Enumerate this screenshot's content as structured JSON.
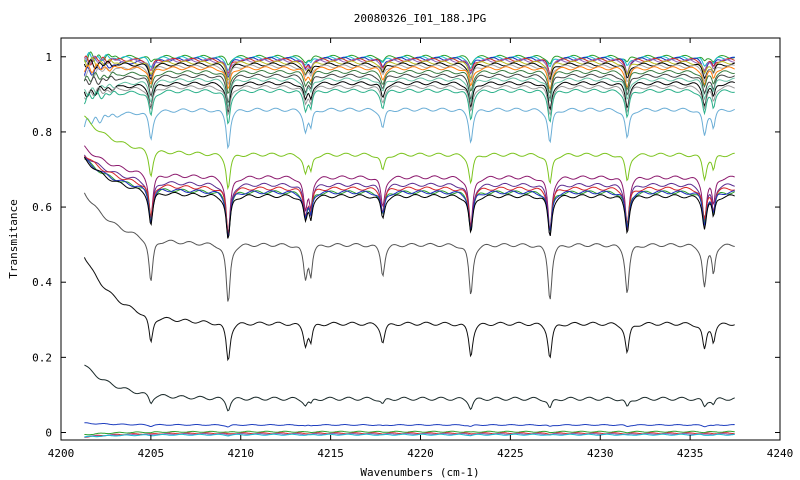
{
  "chart_data": {
    "type": "line",
    "title": "20080326_I01_188.JPG",
    "xlabel": "Wavenumbers (cm-1)",
    "ylabel": "Transmitance",
    "xlim": [
      4200,
      4240
    ],
    "ylim": [
      -0.02,
      1.05
    ],
    "x_ticks": [
      4200,
      4205,
      4210,
      4215,
      4220,
      4225,
      4230,
      4235,
      4240
    ],
    "x_tick_labels": [
      "4200",
      "4205",
      "4210",
      "4215",
      "4220",
      "4225",
      "4230",
      "4235",
      "4240"
    ],
    "y_ticks": [
      0,
      0.2,
      0.4,
      0.6,
      0.8,
      1
    ],
    "y_tick_labels": [
      "0",
      "0.2",
      "0.4",
      "0.6",
      "0.8",
      "1"
    ],
    "x_range_data": [
      4201.3,
      4237.5
    ],
    "absorption_lines_cm1": [
      4205.0,
      4209.3,
      4213.6,
      4217.9,
      4222.8,
      4227.2,
      4231.5,
      4235.8
    ],
    "grid": false,
    "legend": "none",
    "series": [
      {
        "color": "#2ca02c",
        "baseline": 1.0,
        "depth": 0.02,
        "start_rise": 0.0
      },
      {
        "color": "#17becf",
        "baseline": 0.997,
        "depth": 0.03,
        "start_rise": 0.0
      },
      {
        "color": "#1f2fbf",
        "baseline": 0.995,
        "depth": 0.05,
        "start_rise": -0.04
      },
      {
        "color": "#d62728",
        "baseline": 0.992,
        "depth": 0.04,
        "start_rise": 0.0
      },
      {
        "color": "#9467bd",
        "baseline": 0.99,
        "depth": 0.04,
        "start_rise": 0.0
      },
      {
        "color": "#bcbd22",
        "baseline": 0.985,
        "depth": 0.045,
        "start_rise": 0.0
      },
      {
        "color": "#000000",
        "baseline": 0.98,
        "depth": 0.05,
        "start_rise": 0.0
      },
      {
        "color": "#aaaaaa",
        "baseline": 0.975,
        "depth": 0.05,
        "start_rise": -0.02
      },
      {
        "color": "#ff7f0e",
        "baseline": 0.97,
        "depth": 0.06,
        "start_rise": 0.0
      },
      {
        "color": "#3a7d44",
        "baseline": 0.96,
        "depth": 0.06,
        "start_rise": -0.02
      },
      {
        "color": "#444444",
        "baseline": 0.95,
        "depth": 0.07,
        "start_rise": -0.02
      },
      {
        "color": "#66c2a5",
        "baseline": 0.94,
        "depth": 0.07,
        "start_rise": -0.04
      },
      {
        "color": "#000000",
        "baseline": 0.93,
        "depth": 0.08,
        "start_rise": -0.03
      },
      {
        "color": "#999999",
        "baseline": 0.92,
        "depth": 0.08,
        "start_rise": -0.02
      },
      {
        "color": "#2bb08a",
        "baseline": 0.91,
        "depth": 0.09,
        "start_rise": -0.02
      },
      {
        "color": "#6baed6",
        "baseline": 0.86,
        "depth": 0.1,
        "start_rise": -0.04
      },
      {
        "color": "#7cc41f",
        "baseline": 0.74,
        "depth": 0.09,
        "start_rise": 0.1
      },
      {
        "color": "#8c1a6e",
        "baseline": 0.68,
        "depth": 0.16,
        "start_rise": 0.08
      },
      {
        "color": "#5c2d91",
        "baseline": 0.66,
        "depth": 0.15,
        "start_rise": 0.08
      },
      {
        "color": "#d62728",
        "baseline": 0.65,
        "depth": 0.12,
        "start_rise": 0.09
      },
      {
        "color": "#2ca02c",
        "baseline": 0.64,
        "depth": 0.12,
        "start_rise": 0.09
      },
      {
        "color": "#1f2fbf",
        "baseline": 0.64,
        "depth": 0.12,
        "start_rise": 0.09
      },
      {
        "color": "#000000",
        "baseline": 0.63,
        "depth": 0.12,
        "start_rise": 0.1
      },
      {
        "color": "#555555",
        "baseline": 0.5,
        "depth": 0.16,
        "start_rise": 0.14
      },
      {
        "color": "#111111",
        "baseline": 0.29,
        "depth": 0.1,
        "start_rise": 0.18
      },
      {
        "color": "#1a2a2a",
        "baseline": 0.09,
        "depth": 0.03,
        "start_rise": 0.09
      },
      {
        "color": "#1f3fbf",
        "baseline": 0.02,
        "depth": 0.005,
        "start_rise": 0.005
      },
      {
        "color": "#2ca02c",
        "baseline": 0.002,
        "depth": 0.002,
        "start_rise": -0.008
      },
      {
        "color": "#d62728",
        "baseline": -0.002,
        "depth": 0.002,
        "start_rise": -0.01
      },
      {
        "color": "#9467bd",
        "baseline": -0.004,
        "depth": 0.002,
        "start_rise": -0.008
      },
      {
        "color": "#17becf",
        "baseline": -0.006,
        "depth": 0.002,
        "start_rise": -0.006
      }
    ]
  }
}
